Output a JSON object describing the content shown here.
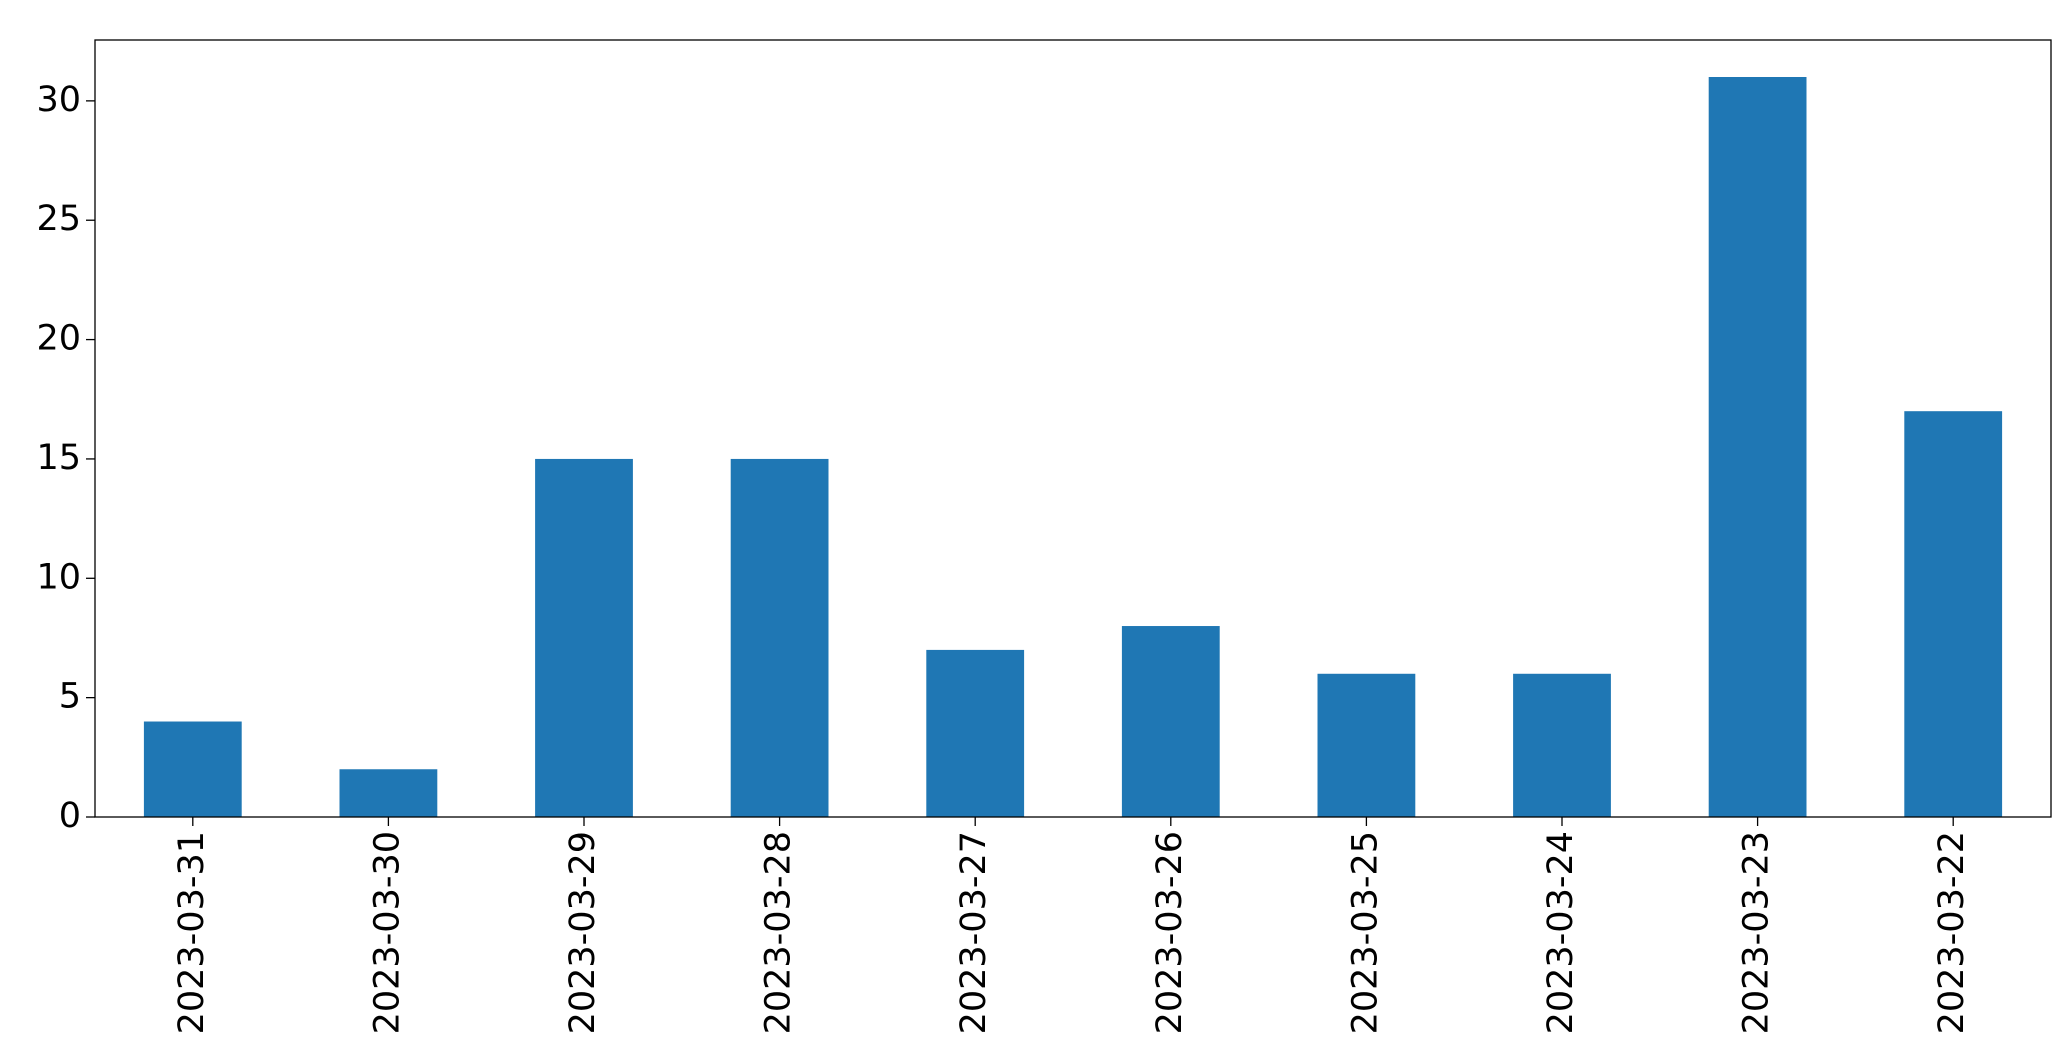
{
  "chart_data": {
    "type": "bar",
    "categories": [
      "2023-03-31",
      "2023-03-30",
      "2023-03-29",
      "2023-03-28",
      "2023-03-27",
      "2023-03-26",
      "2023-03-25",
      "2023-03-24",
      "2023-03-23",
      "2023-03-22"
    ],
    "values": [
      4,
      2,
      15,
      15,
      7,
      8,
      6,
      6,
      31,
      17
    ],
    "color": "#1f77b4",
    "ylim": [
      0,
      32.55
    ],
    "yticks": [
      0,
      5,
      10,
      15,
      20,
      25,
      30
    ],
    "grid": false
  }
}
